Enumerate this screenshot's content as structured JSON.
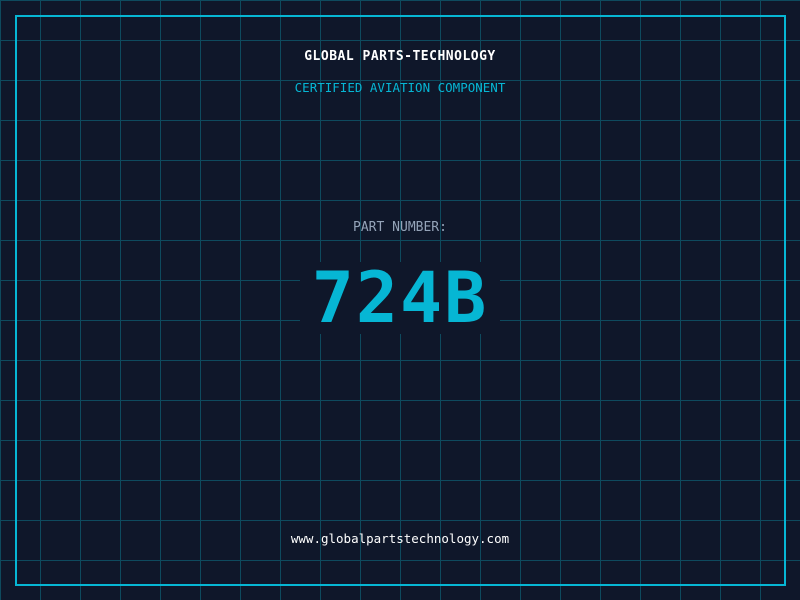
{
  "colors": {
    "background": "#0f172a",
    "grid": "#0e4a5e",
    "accent": "#06b6d4",
    "label": "#94a3b8",
    "text": "#ffffff"
  },
  "header": {
    "title": "GLOBAL PARTS-TECHNOLOGY",
    "subtitle": "CERTIFIED AVIATION COMPONENT"
  },
  "part": {
    "label": "PART NUMBER:",
    "number": "724B"
  },
  "footer": {
    "url": "www.globalpartstechnology.com"
  }
}
